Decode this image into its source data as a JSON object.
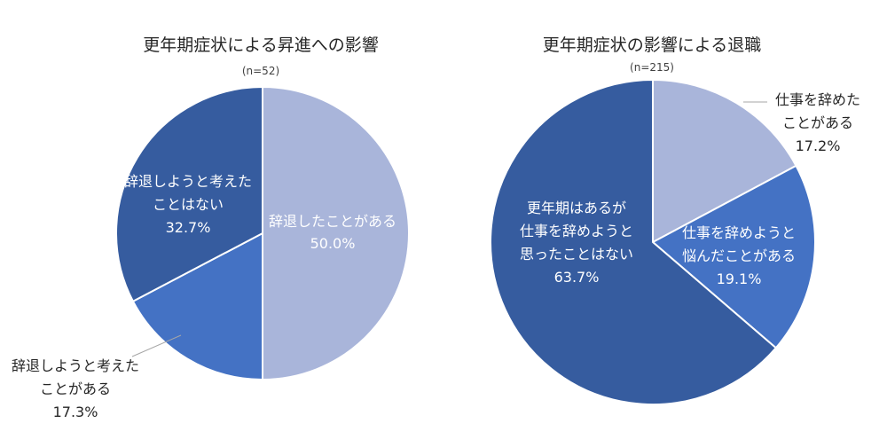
{
  "colors": {
    "light": "#A9B5DA",
    "medium": "#4472C4",
    "dark": "#365C9F",
    "leader": "#A6A6A6",
    "text_dark": "#262626",
    "text_light": "#FFFFFF"
  },
  "chart_data": [
    {
      "type": "pie",
      "title": "更年期症状による昇進への影響",
      "subtitle": "(n=52)",
      "slices": [
        {
          "name": "辞退したことがある",
          "value": 50.0,
          "label": "50.0%",
          "color": "#A9B5DA"
        },
        {
          "name": "辞退しようと考えたことがある",
          "value": 17.3,
          "label": "17.3%",
          "color": "#4472C4"
        },
        {
          "name": "辞退しようと考えたことはない",
          "value": 32.7,
          "label": "32.7%",
          "color": "#365C9F"
        }
      ],
      "slice_labels": [
        {
          "lines": [
            "辞退したことがある",
            "50.0%"
          ],
          "placement": "inside"
        },
        {
          "lines": [
            "辞退しようと考えた",
            "ことがある",
            "17.3%"
          ],
          "placement": "outside-left"
        },
        {
          "lines": [
            "辞退しようと考えた",
            "ことはない",
            "32.7%"
          ],
          "placement": "inside"
        }
      ]
    },
    {
      "type": "pie",
      "title": "更年期症状の影響による退職",
      "subtitle": "(n=215)",
      "slices": [
        {
          "name": "仕事を辞めたことがある",
          "value": 17.2,
          "label": "17.2%",
          "color": "#A9B5DA"
        },
        {
          "name": "仕事を辞めようと悩んだことがある",
          "value": 19.1,
          "label": "19.1%",
          "color": "#4472C4"
        },
        {
          "name": "更年期はあるが仕事を辞めようと思ったことはない",
          "value": 63.7,
          "label": "63.7%",
          "color": "#365C9F"
        }
      ],
      "slice_labels": [
        {
          "lines": [
            "仕事を辞めた",
            "ことがある",
            "17.2%"
          ],
          "placement": "outside-right"
        },
        {
          "lines": [
            "仕事を辞めようと",
            "悩んだことがある",
            "19.1%"
          ],
          "placement": "inside"
        },
        {
          "lines": [
            "更年期はあるが",
            "仕事を辞めようと",
            "思ったことはない",
            "63.7%"
          ],
          "placement": "inside"
        }
      ]
    }
  ]
}
